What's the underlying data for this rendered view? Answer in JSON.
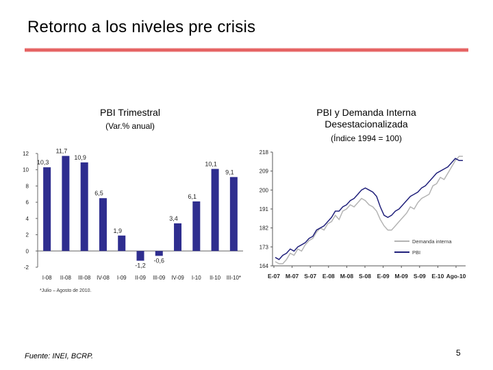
{
  "slide": {
    "title": "Retorno a los niveles pre crisis",
    "source": "Fuente: INEI, BCRP.",
    "page_number": "5",
    "colors": {
      "bar": "#2e2d8f",
      "rule": "#e04545",
      "pbi_line": "#1f1f7a",
      "di_line": "#b3b3b3"
    }
  },
  "chart_data": [
    {
      "type": "bar",
      "title": "PBI Trimestral",
      "subtitle": "(Var.% anual)",
      "categories": [
        "I-08",
        "II-08",
        "III-08",
        "IV-08",
        "I-09",
        "II-09",
        "III-09",
        "IV-09",
        "I-10",
        "II-10",
        "III-10*"
      ],
      "values": [
        10.3,
        11.7,
        10.9,
        6.5,
        1.9,
        -1.2,
        -0.6,
        3.4,
        6.1,
        10.1,
        9.1
      ],
      "value_labels": [
        "10,3",
        "11,7",
        "10,9",
        "6,5",
        "1,9",
        "-1,2",
        "-0,6",
        "3,4",
        "6,1",
        "10,1",
        "9,1"
      ],
      "yticks": [
        12,
        10,
        8,
        6,
        4,
        2,
        0,
        -2
      ],
      "ytick_labels": [
        "12",
        "10",
        "8",
        "6",
        "4",
        "2",
        "0",
        "-2"
      ],
      "ylim": [
        -2,
        12
      ],
      "footnote": "*Julio – Agosto de 2010."
    },
    {
      "type": "line",
      "title": "PBI y Demanda Interna",
      "title2": "Desestacionalizada",
      "subtitle": "(Índice 1994 = 100)",
      "x_tick_labels": [
        "E-07",
        "M-07",
        "S-07",
        "E-08",
        "M-08",
        "S-08",
        "E-09",
        "M-09",
        "S-09",
        "E-10",
        "Ago-10"
      ],
      "yticks": [
        164,
        173,
        182,
        191,
        200,
        209,
        218
      ],
      "ytick_labels": [
        "164",
        "173",
        "182",
        "191",
        "200",
        "209",
        "218"
      ],
      "ylim": [
        164,
        218
      ],
      "series": [
        {
          "name": "Demanda Interna",
          "legend": "Demanda interna",
          "values": [
            166,
            165,
            165,
            167,
            170,
            169,
            172,
            171,
            174,
            176,
            177,
            180,
            182,
            181,
            184,
            185,
            188,
            186,
            190,
            191,
            193,
            192,
            194,
            196,
            195,
            193,
            192,
            190,
            186,
            183,
            181,
            181,
            183,
            185,
            187,
            189,
            192,
            191,
            194,
            196,
            197,
            198,
            202,
            203,
            206,
            205,
            208,
            211,
            214,
            216,
            216
          ]
        },
        {
          "name": "PBI",
          "legend": "PBI",
          "values": [
            168,
            167,
            169,
            170,
            172,
            171,
            173,
            174,
            175,
            177,
            178,
            181,
            182,
            183,
            185,
            187,
            190,
            190,
            192,
            193,
            195,
            196,
            198,
            200,
            201,
            200,
            199,
            197,
            192,
            188,
            187,
            188,
            190,
            191,
            193,
            195,
            197,
            198,
            199,
            201,
            202,
            204,
            206,
            208,
            209,
            210,
            211,
            213,
            215,
            214,
            214
          ]
        }
      ]
    }
  ]
}
